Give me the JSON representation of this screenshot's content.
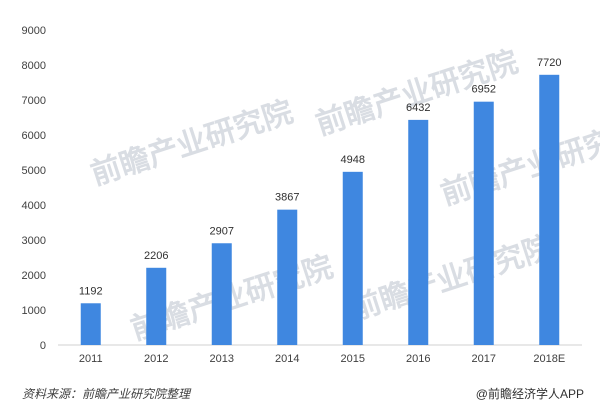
{
  "chart_data": {
    "type": "bar",
    "categories": [
      "2011",
      "2012",
      "2013",
      "2014",
      "2015",
      "2016",
      "2017",
      "2018E"
    ],
    "values": [
      1192,
      2206,
      2907,
      3867,
      4948,
      6432,
      6952,
      7720
    ],
    "data_labels": [
      "1192",
      "2206",
      "2907",
      "3867",
      "4948",
      "6432",
      "6952",
      "7720"
    ],
    "title": "",
    "xlabel": "",
    "ylabel": "",
    "ylim": [
      0,
      9000
    ],
    "yticks": [
      0,
      1000,
      2000,
      3000,
      4000,
      5000,
      6000,
      7000,
      8000,
      9000
    ],
    "grid": false,
    "bar_color": "#3f87e0"
  },
  "watermark": "前瞻产业研究院",
  "footer": {
    "source": "资料来源：前瞻产业研究院整理",
    "brand": "@前瞻经济学人APP"
  }
}
